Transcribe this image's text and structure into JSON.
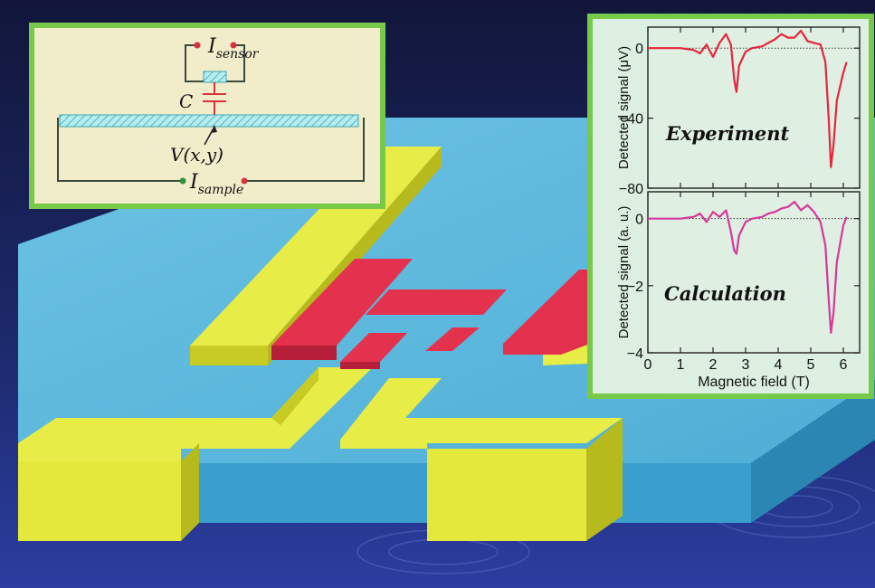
{
  "colors": {
    "background_top": "#1b2150",
    "background_bottom": "#2a3d9a",
    "substrate_top": "#5cb5d9",
    "substrate_side": "#3aa0cc",
    "electrode_yellow": "#e8ec46",
    "sample_red": "#e4314e",
    "panel_border": "#78c84a",
    "inset_bg": "#f1ecca",
    "graph_bg": "#dcefe0",
    "experiment_trace": "#e5263b",
    "calculation_trace": "#d6389a",
    "circuit_wire": "#3a4a3a",
    "circuit_red": "#d8323c",
    "hatch_cyan": "#9fe0e8"
  },
  "inset": {
    "sensor_current_symbol": "I",
    "sensor_current_subscript": "sensor",
    "capacitor_label": "C",
    "potential_label": "V(x,y)",
    "sample_current_symbol": "I",
    "sample_current_subscript": "sample"
  },
  "chart_data": [
    {
      "type": "line",
      "label": "Experiment",
      "ylabel": "Detected signal (μV)",
      "xlabel": "",
      "xlim": [
        0,
        6.5
      ],
      "ylim": [
        -80,
        12
      ],
      "yticks": [
        0,
        -40,
        -80
      ],
      "ytick_labels": [
        "0",
        "−40",
        "−80"
      ],
      "xticks": [
        0,
        1,
        2,
        3,
        4,
        5,
        6
      ],
      "zero_line": true,
      "series": [
        {
          "color": "#e5263b",
          "x": [
            0.0,
            0.5,
            1.0,
            1.4,
            1.6,
            1.8,
            2.0,
            2.2,
            2.4,
            2.55,
            2.65,
            2.72,
            2.8,
            3.0,
            3.2,
            3.5,
            3.7,
            3.9,
            4.1,
            4.3,
            4.5,
            4.7,
            4.9,
            5.1,
            5.3,
            5.45,
            5.55,
            5.62,
            5.7,
            5.8,
            6.0,
            6.1
          ],
          "y": [
            0,
            0,
            0,
            -1,
            -3,
            2,
            -5,
            3,
            8,
            2,
            -18,
            -25,
            -10,
            -2,
            0,
            1,
            3,
            5,
            8,
            6,
            6,
            10,
            4,
            3,
            2,
            -8,
            -40,
            -68,
            -55,
            -30,
            -14,
            -8
          ]
        }
      ]
    },
    {
      "type": "line",
      "label": "Calculation",
      "ylabel": "Detected signal (a. u.)",
      "xlabel": "Magnetic field (T)",
      "xlim": [
        0,
        6.5
      ],
      "ylim": [
        -4,
        0.8
      ],
      "yticks": [
        0,
        -2,
        -4
      ],
      "ytick_labels": [
        "0",
        "−2",
        "−4"
      ],
      "xticks": [
        0,
        1,
        2,
        3,
        4,
        5,
        6
      ],
      "xtick_labels": [
        "0",
        "1",
        "2",
        "3",
        "4",
        "5",
        "6"
      ],
      "zero_line": true,
      "series": [
        {
          "color": "#d6389a",
          "x": [
            0.0,
            0.5,
            1.0,
            1.4,
            1.6,
            1.8,
            2.0,
            2.2,
            2.4,
            2.55,
            2.65,
            2.72,
            2.8,
            3.0,
            3.2,
            3.5,
            3.7,
            3.9,
            4.1,
            4.3,
            4.5,
            4.7,
            4.9,
            5.1,
            5.3,
            5.45,
            5.55,
            5.62,
            5.7,
            5.8,
            6.0,
            6.1
          ],
          "y": [
            0,
            0,
            0,
            0.05,
            0.15,
            -0.1,
            0.2,
            0.05,
            0.25,
            -0.4,
            -0.95,
            -1.05,
            -0.5,
            -0.1,
            0.0,
            0.05,
            0.15,
            0.2,
            0.3,
            0.35,
            0.5,
            0.25,
            0.4,
            0.2,
            -0.1,
            -0.8,
            -2.4,
            -3.4,
            -2.8,
            -1.3,
            -0.2,
            0.05
          ]
        }
      ]
    }
  ]
}
